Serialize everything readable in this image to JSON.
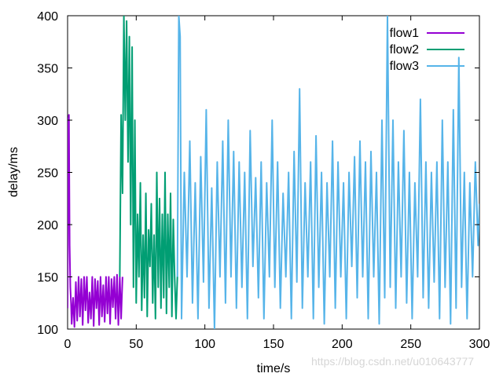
{
  "chart_data": {
    "type": "line",
    "title": "",
    "xlabel": "time/s",
    "ylabel": "delay/ms",
    "xlim": [
      0,
      300
    ],
    "ylim": [
      100,
      400
    ],
    "xticks": [
      0,
      50,
      100,
      150,
      200,
      250,
      300
    ],
    "yticks": [
      100,
      150,
      200,
      250,
      300,
      350,
      400
    ],
    "grid": false,
    "legend_position": "top-right",
    "series": [
      {
        "name": "flow1",
        "color": "#9400d3",
        "x": [
          0,
          0.5,
          1,
          1.5,
          2,
          2.5,
          3,
          4,
          5,
          6,
          7,
          8,
          9,
          10,
          11,
          12,
          13,
          14,
          15,
          16,
          17,
          18,
          19,
          20,
          21,
          22,
          23,
          24,
          25,
          26,
          27,
          28,
          29,
          30,
          31,
          32,
          33,
          34,
          35,
          36,
          37,
          38,
          39,
          40
        ],
        "y": [
          120,
          300,
          305,
          180,
          140,
          125,
          105,
          130,
          102,
          145,
          108,
          150,
          112,
          148,
          104,
          150,
          118,
          150,
          106,
          135,
          110,
          150,
          103,
          148,
          120,
          146,
          104,
          150,
          112,
          142,
          107,
          150,
          115,
          150,
          105,
          148,
          121,
          150,
          110,
          152,
          104,
          150,
          110,
          150
        ]
      },
      {
        "name": "flow2",
        "color": "#009e73",
        "x": [
          38,
          39,
          40,
          41,
          42,
          43,
          44,
          45,
          46,
          47,
          48,
          49,
          50,
          51,
          52,
          53,
          54,
          55,
          56,
          57,
          58,
          59,
          60,
          61,
          62,
          63,
          64,
          65,
          66,
          67,
          68,
          69,
          70,
          71,
          72,
          73,
          74,
          75,
          76,
          77,
          78,
          79,
          80
        ],
        "y": [
          150,
          305,
          230,
          400,
          300,
          395,
          260,
          380,
          200,
          370,
          140,
          300,
          125,
          210,
          150,
          240,
          118,
          190,
          130,
          230,
          112,
          195,
          160,
          220,
          125,
          190,
          110,
          250,
          140,
          225,
          120,
          210,
          130,
          250,
          115,
          210,
          140,
          230,
          112,
          205,
          150,
          110,
          150
        ]
      },
      {
        "name": "flow3",
        "color": "#56b4e9",
        "x": [
          80,
          81,
          82,
          83,
          85,
          87,
          89,
          91,
          93,
          95,
          97,
          99,
          101,
          103,
          105,
          107,
          109,
          111,
          113,
          115,
          117,
          119,
          121,
          123,
          125,
          127,
          129,
          131,
          133,
          135,
          137,
          139,
          141,
          143,
          145,
          147,
          149,
          151,
          153,
          155,
          157,
          159,
          161,
          163,
          165,
          167,
          169,
          171,
          173,
          175,
          177,
          179,
          181,
          183,
          185,
          187,
          189,
          191,
          193,
          195,
          197,
          199,
          201,
          203,
          205,
          207,
          209,
          211,
          213,
          215,
          217,
          219,
          221,
          223,
          225,
          227,
          229,
          231,
          233,
          235,
          237,
          239,
          241,
          243,
          245,
          247,
          249,
          251,
          253,
          255,
          257,
          259,
          261,
          263,
          265,
          267,
          269,
          271,
          273,
          275,
          277,
          279,
          281,
          283,
          285,
          287,
          289,
          291,
          293,
          295,
          297,
          299,
          300
        ],
        "y": [
          150,
          400,
          380,
          110,
          250,
          150,
          280,
          125,
          240,
          110,
          265,
          145,
          310,
          120,
          235,
          100,
          260,
          150,
          280,
          125,
          300,
          150,
          270,
          120,
          260,
          140,
          250,
          110,
          290,
          160,
          245,
          130,
          260,
          110,
          240,
          150,
          300,
          140,
          260,
          120,
          230,
          150,
          250,
          110,
          270,
          145,
          330,
          120,
          240,
          150,
          260,
          110,
          285,
          140,
          250,
          105,
          240,
          150,
          280,
          120,
          260,
          150,
          240,
          110,
          250,
          160,
          265,
          130,
          280,
          150,
          260,
          110,
          270,
          150,
          250,
          105,
          300,
          130,
          400,
          140,
          300,
          120,
          260,
          150,
          290,
          125,
          250,
          110,
          240,
          150,
          320,
          130,
          260,
          120,
          250,
          145,
          260,
          110,
          300,
          140,
          260,
          105,
          310,
          120,
          360,
          140,
          250,
          110,
          240,
          150,
          260,
          180,
          220
        ]
      }
    ]
  },
  "watermark": "https://blog.csdn.net/u010643777"
}
